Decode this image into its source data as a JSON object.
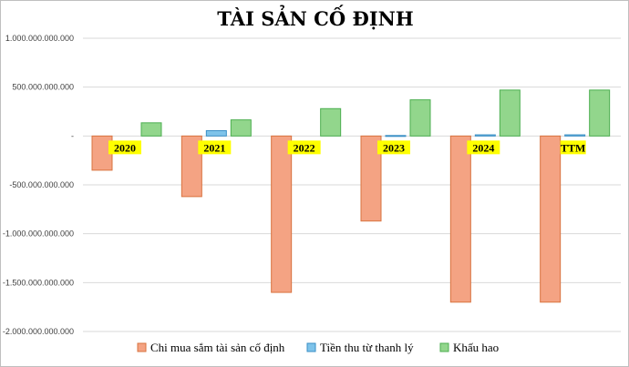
{
  "chart_data": {
    "type": "bar",
    "title": "TÀI SẢN CỐ ĐỊNH",
    "xlabel": "",
    "ylabel": "",
    "categories": [
      "2020",
      "2021",
      "2022",
      "2023",
      "2024",
      "TTM"
    ],
    "series": [
      {
        "name": "Chi mua sắm tài sản cố định",
        "color": "#f4a383",
        "values": [
          -350000000000,
          -620000000000,
          -1600000000000,
          -870000000000,
          -1700000000000,
          -1700000000000
        ]
      },
      {
        "name": "Tiền thu từ thanh lý",
        "color": "#7ec3ea",
        "values": [
          0,
          55000000000,
          0,
          5000000000,
          12000000000,
          12000000000
        ]
      },
      {
        "name": "Khấu hao",
        "color": "#92d68c",
        "values": [
          135000000000,
          165000000000,
          280000000000,
          370000000000,
          470000000000,
          470000000000
        ]
      }
    ],
    "ylim": [
      -2000000000000,
      1000000000000
    ],
    "yticks": [
      1000000000000,
      500000000000,
      0,
      -500000000000,
      -1000000000000,
      -1500000000000,
      -2000000000000
    ],
    "ytick_labels": [
      "1.000.000.000.000",
      "500.000.000.000",
      "-",
      "-500.000.000.000",
      "-1.000.000.000.000",
      "-1.500.000.000.000",
      "-2.000.000.000.000"
    ],
    "grid": true,
    "legend_position": "bottom",
    "category_label_background": "#ffff00"
  }
}
